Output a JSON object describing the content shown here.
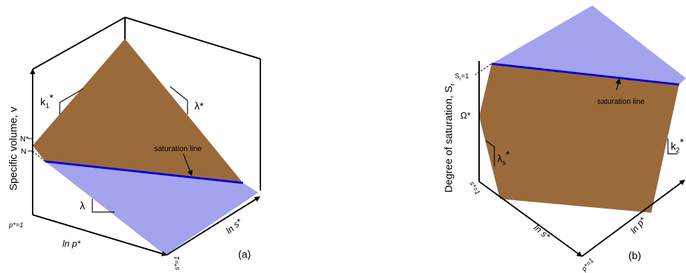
{
  "panel_a": {
    "y_axis_label": "Specific volume, v",
    "ln_p_label": "ln p*",
    "ln_s_label": "ln s*",
    "p_origin_label": "p*=1",
    "s_origin_label": "s*=1",
    "n_star_label": "N*",
    "n_label": "N",
    "k1_star_label": "k",
    "k1_star_sub": "1",
    "lambda_star_label": "λ*",
    "lambda_label": "λ",
    "saturation_label": "saturation line",
    "panel_tag": "(a)",
    "colors": {
      "upper_surface": "#9b6a3a",
      "lower_surface": "#a3a3ee",
      "saturation_line": "#0000dd"
    }
  },
  "panel_b": {
    "y_axis_label": "Degree of saturation, S",
    "y_axis_sub": "r",
    "sr1_label": "S",
    "sr1_sub": "r",
    "sr1_suffix": "=1",
    "omega_label": "Ω*",
    "lambda_s_label": "λ",
    "lambda_s_sub": "s",
    "k2_label": "k",
    "k2_sub": "2",
    "s_origin_label": "s*=1",
    "p_origin_label": "p*=1",
    "ln_s_label": "ln s*",
    "ln_p_label": "ln p*",
    "saturation_label": "saturation line",
    "panel_tag": "(b)",
    "colors": {
      "upper_surface": "#a3a3ee",
      "lower_surface": "#9b6a3a",
      "saturation_line": "#0000dd"
    }
  }
}
